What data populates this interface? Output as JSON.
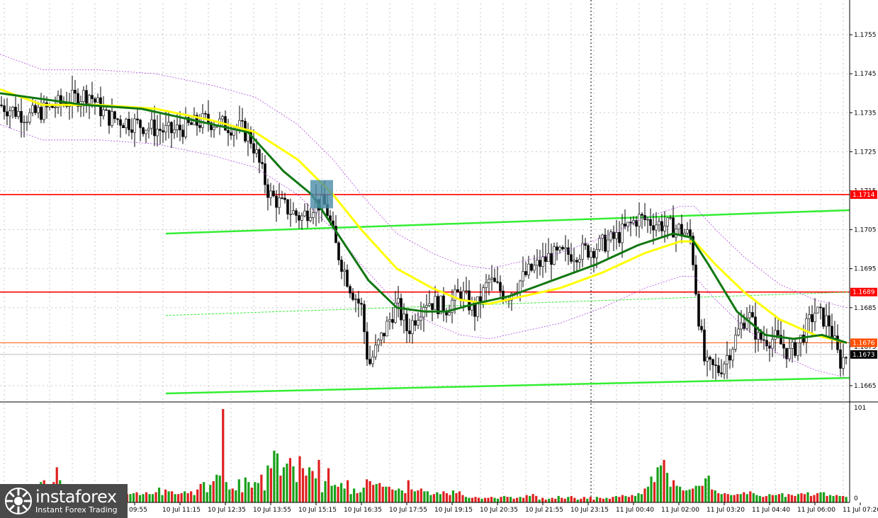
{
  "chart_data": [
    {
      "type": "candlestick",
      "title": "",
      "ylim": [
        1.1661,
        1.1763
      ],
      "y_ticks": [
        "1.1755",
        "1.1745",
        "1.1735",
        "1.1725",
        "1.1715",
        "1.1705",
        "1.1695",
        "1.1685",
        "1.1675",
        "1.1665"
      ],
      "y_tick_values": [
        1.1755,
        1.1745,
        1.1735,
        1.1725,
        1.1715,
        1.1705,
        1.1695,
        1.1685,
        1.1675,
        1.1665
      ],
      "x_ticks": [
        "09:55",
        "10 Jul 11:15",
        "10 Jul 12:35",
        "10 Jul 13:55",
        "10 Jul 15:15",
        "10 Jul 16:35",
        "10 Jul 17:55",
        "10 Jul 19:15",
        "10 Jul 20:35",
        "10 Jul 21:55",
        "10 Jul 23:15",
        "11 Jul 00:40",
        "11 Jul 02:00",
        "11 Jul 03:20",
        "11 Jul 04:40",
        "11 Jul 06:00",
        "11 Jul 07:20"
      ],
      "horizontal_levels": [
        {
          "label": "1.1714",
          "value": 1.1714,
          "color": "#ff0000"
        },
        {
          "label": "1.1689",
          "value": 1.1689,
          "color": "#ff0000"
        },
        {
          "label": "1.1676",
          "value": 1.1676,
          "color": "#ff5000"
        },
        {
          "label": "1.1673",
          "value": 1.1673,
          "color": "#000000"
        }
      ],
      "price_path": [
        [
          0,
          1.1737
        ],
        [
          40,
          1.1734
        ],
        [
          80,
          1.1737
        ],
        [
          125,
          1.174
        ],
        [
          150,
          1.1734
        ],
        [
          195,
          1.1732
        ],
        [
          240,
          1.173
        ],
        [
          290,
          1.1733
        ],
        [
          340,
          1.1731
        ],
        [
          355,
          1.1728
        ],
        [
          380,
          1.1714
        ],
        [
          400,
          1.1711
        ],
        [
          425,
          1.1708
        ],
        [
          445,
          1.1712
        ],
        [
          460,
          1.1711
        ],
        [
          475,
          1.17
        ],
        [
          495,
          1.169
        ],
        [
          510,
          1.1685
        ],
        [
          520,
          1.167
        ],
        [
          535,
          1.1676
        ],
        [
          560,
          1.1686
        ],
        [
          575,
          1.1679
        ],
        [
          600,
          1.1687
        ],
        [
          630,
          1.1685
        ],
        [
          650,
          1.1689
        ],
        [
          670,
          1.1684
        ],
        [
          690,
          1.1692
        ],
        [
          715,
          1.1688
        ],
        [
          745,
          1.1694
        ],
        [
          775,
          1.1698
        ],
        [
          810,
          1.1699
        ],
        [
          835,
          1.17
        ],
        [
          870,
          1.1703
        ],
        [
          900,
          1.1708
        ],
        [
          920,
          1.1707
        ],
        [
          960,
          1.1705
        ],
        [
          975,
          1.1703
        ],
        [
          985,
          1.1684
        ],
        [
          995,
          1.167
        ],
        [
          1015,
          1.1669
        ],
        [
          1030,
          1.1674
        ],
        [
          1055,
          1.1684
        ],
        [
          1070,
          1.1677
        ],
        [
          1095,
          1.1677
        ],
        [
          1115,
          1.1673
        ],
        [
          1130,
          1.1677
        ],
        [
          1150,
          1.1684
        ],
        [
          1170,
          1.1681
        ],
        [
          1185,
          1.1671
        ],
        [
          1195,
          1.1673
        ]
      ],
      "ma_fast_path": [
        [
          0,
          1.174
        ],
        [
          120,
          1.1737
        ],
        [
          200,
          1.1736
        ],
        [
          300,
          1.1732
        ],
        [
          350,
          1.173
        ],
        [
          400,
          1.172
        ],
        [
          440,
          1.1714
        ],
        [
          480,
          1.1703
        ],
        [
          520,
          1.1692
        ],
        [
          560,
          1.1685
        ],
        [
          600,
          1.1684
        ],
        [
          630,
          1.1684
        ],
        [
          670,
          1.1686
        ],
        [
          720,
          1.1688
        ],
        [
          780,
          1.1692
        ],
        [
          840,
          1.1696
        ],
        [
          900,
          1.1701
        ],
        [
          950,
          1.1704
        ],
        [
          975,
          1.1703
        ],
        [
          1000,
          1.1696
        ],
        [
          1040,
          1.1684
        ],
        [
          1080,
          1.1678
        ],
        [
          1120,
          1.1677
        ],
        [
          1160,
          1.1678
        ],
        [
          1195,
          1.1676
        ]
      ],
      "ma_slow_path": [
        [
          0,
          1.1741
        ],
        [
          60,
          1.1737
        ],
        [
          140,
          1.1737
        ],
        [
          220,
          1.1736
        ],
        [
          300,
          1.1733
        ],
        [
          360,
          1.173
        ],
        [
          420,
          1.1723
        ],
        [
          470,
          1.1714
        ],
        [
          510,
          1.1705
        ],
        [
          560,
          1.1695
        ],
        [
          610,
          1.169
        ],
        [
          650,
          1.1687
        ],
        [
          690,
          1.1686
        ],
        [
          740,
          1.1688
        ],
        [
          790,
          1.169
        ],
        [
          850,
          1.1694
        ],
        [
          910,
          1.1699
        ],
        [
          960,
          1.1702
        ],
        [
          980,
          1.1702
        ],
        [
          1010,
          1.1696
        ],
        [
          1050,
          1.1689
        ],
        [
          1100,
          1.1682
        ],
        [
          1150,
          1.1678
        ],
        [
          1195,
          1.1676
        ]
      ],
      "channel_lines": [
        {
          "from": [
            234,
            1.1704
          ],
          "to": [
            1199,
            1.171
          ],
          "color": "#33ee33"
        },
        {
          "from": [
            234,
            1.1663
          ],
          "to": [
            1199,
            1.1667
          ],
          "color": "#33ee33"
        },
        {
          "from": [
            234,
            1.1683
          ],
          "to": [
            1199,
            1.1689
          ],
          "color": "#33ee33",
          "dashed": true
        }
      ],
      "marker_box": {
        "x": 454,
        "value": 1.1713,
        "color": "#4a8ca8"
      },
      "vertical_marker_x": 834
    },
    {
      "type": "bar",
      "title": "",
      "ylim": [
        0,
        101
      ],
      "y_ticks": [
        "101",
        "0"
      ],
      "series": [
        {
          "values": [
            8,
            8,
            11,
            8,
            11,
            10,
            11,
            13,
            12,
            15,
            18,
            16,
            22,
            24,
            15,
            13,
            22,
            38,
            24,
            13,
            15,
            10,
            12,
            11,
            9,
            8,
            7,
            7,
            8,
            11,
            8,
            8,
            8,
            11,
            8,
            13,
            9,
            9,
            12,
            9,
            9,
            10,
            11,
            8,
            9,
            11,
            9,
            9,
            11,
            16,
            8,
            14,
            12,
            12,
            9,
            9,
            10,
            12,
            10,
            12,
            8,
            14,
            20,
            22,
            11,
            19,
            23,
            30,
            29,
            101,
            22,
            14,
            15,
            13,
            25,
            11,
            27,
            22,
            16,
            22,
            21,
            30,
            13,
            40,
            37,
            56,
            53,
            29,
            38,
            42,
            48,
            39,
            22,
            50,
            37,
            29,
            38,
            34,
            26,
            46,
            11,
            23,
            37,
            18,
            19,
            17,
            21,
            15,
            24,
            9,
            15,
            10,
            11,
            16,
            25,
            23,
            19,
            20,
            21,
            17,
            17,
            17,
            14,
            13,
            15,
            13,
            10,
            24,
            14,
            12,
            13,
            15,
            12,
            12,
            8,
            9,
            11,
            9,
            12,
            10,
            8,
            13,
            10,
            12,
            8,
            6,
            5,
            5,
            6,
            5,
            4,
            5,
            5,
            6,
            5,
            4,
            6,
            7,
            6,
            6,
            4,
            5,
            6,
            5,
            8,
            7,
            9,
            7,
            3,
            5,
            3,
            4,
            5,
            4,
            7,
            5,
            4,
            6,
            7,
            5,
            3,
            4,
            6,
            4,
            6,
            3,
            6,
            5,
            4,
            5,
            4,
            6,
            7,
            6,
            8,
            7,
            6,
            8,
            7,
            10,
            9,
            15,
            17,
            28,
            22,
            38,
            40,
            46,
            32,
            17,
            24,
            18,
            17,
            13,
            13,
            14,
            15,
            18,
            18,
            18,
            26,
            29,
            14,
            13,
            10,
            9,
            10,
            9,
            8,
            8,
            9,
            9,
            11,
            9,
            12,
            10,
            8,
            7,
            6,
            7,
            9,
            8,
            8,
            9,
            10,
            6,
            9,
            8,
            7,
            9,
            10,
            9,
            11,
            7,
            8,
            10,
            11,
            11,
            7,
            8,
            7,
            8,
            7,
            7,
            6
          ]
        }
      ]
    }
  ],
  "logo": {
    "brand": "instaforex",
    "tagline": "Instant Forex Trading"
  }
}
